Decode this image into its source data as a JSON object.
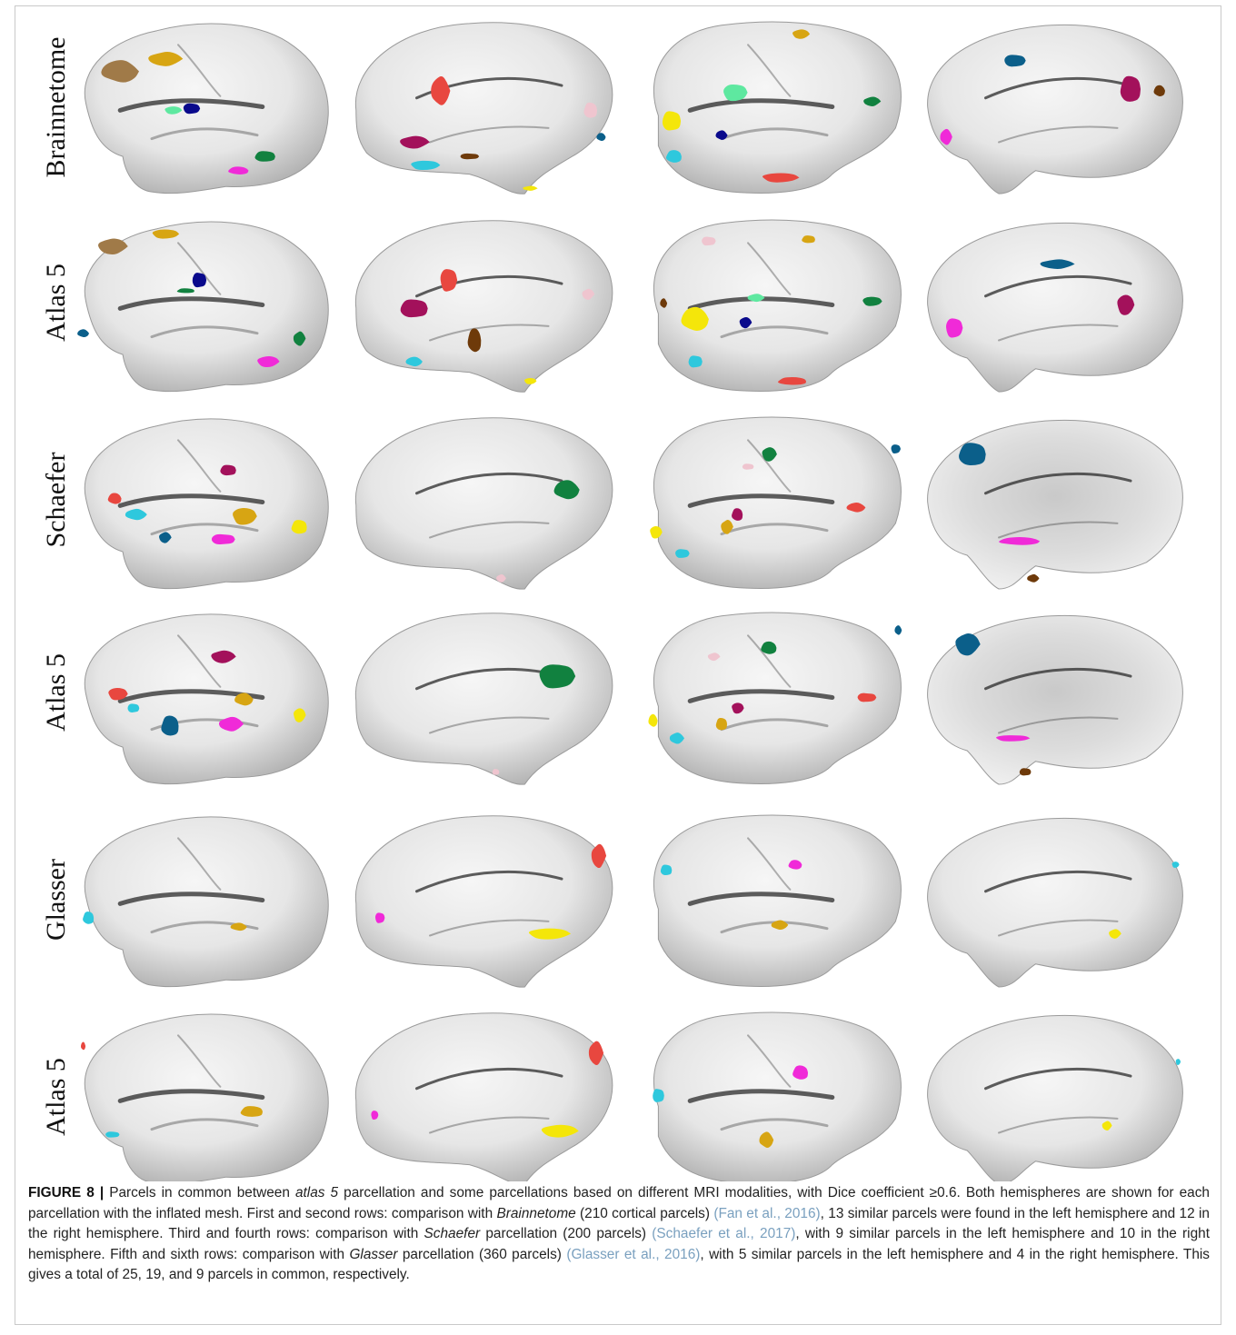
{
  "figure": {
    "row_labels": [
      "Brainnetome",
      "Atlas 5",
      "Schaefer",
      "Atlas 5",
      "Glasser",
      "Atlas 5"
    ],
    "caption": {
      "label": "FIGURE 8 |",
      "seg1": " Parcels in common between ",
      "italic1": "atlas 5",
      "seg2": " parcellation and some parcellations based on different MRI modalities, with Dice coefficient ≥0.6. Both hemispheres are shown for each parcellation with the inflated mesh. First and second rows: comparison with ",
      "italic2": "Brainnetome",
      "seg3": " (210 cortical parcels) ",
      "cite1": "(Fan et al., 2016)",
      "seg4": ", 13 similar parcels were found in the left hemisphere and 12 in the right hemisphere. Third and fourth rows: comparison with ",
      "italic3": "Schaefer",
      "seg5": " parcellation (200 parcels) ",
      "cite2": "(Schaefer et al., 2017)",
      "seg6": ", with 9 similar parcels in the left hemisphere and 10 in the right hemisphere. Fifth and sixth rows: comparison with ",
      "italic4": "Glasser",
      "seg7": " parcellation (360 parcels) ",
      "cite3": "(Glasser et al., 2016)",
      "seg8": ", with 5 similar parcels in the left hemisphere and 4 in the right hemisphere. This gives a total of 25, 19, and 9 parcels in common, respectively."
    },
    "colors": {
      "mesh_light": "#f4f4f4",
      "mesh_dark": "#b9b9b9",
      "sulcus": "#2a2a2a",
      "red": "#e8473f",
      "maroon": "#a3115b",
      "yellow": "#f4e60a",
      "cyan": "#2ec8dd",
      "green": "#11813f",
      "mint": "#5ee8a0",
      "navy": "#0a0a8c",
      "steel_blue": "#0b5f8a",
      "tan": "#a07a48",
      "gold": "#d7a513",
      "brown": "#6e3a0a",
      "magenta": "#f02ad8",
      "pink": "#efc5cf"
    },
    "panels": [
      [
        {
          "view": "lateral-left",
          "parcels": [
            [
              "tan",
              0.18,
              0.3,
              0.16,
              0.14
            ],
            [
              "gold",
              0.35,
              0.23,
              0.14,
              0.09
            ],
            [
              "mint",
              0.38,
              0.52,
              0.07,
              0.05
            ],
            [
              "navy",
              0.45,
              0.51,
              0.07,
              0.07
            ],
            [
              "green",
              0.73,
              0.78,
              0.09,
              0.07
            ],
            [
              "magenta",
              0.63,
              0.86,
              0.09,
              0.05
            ]
          ]
        },
        {
          "view": "medial-left",
          "parcels": [
            [
              "red",
              0.34,
              0.41,
              0.08,
              0.18
            ],
            [
              "maroon",
              0.24,
              0.7,
              0.12,
              0.08
            ],
            [
              "cyan",
              0.28,
              0.83,
              0.12,
              0.06
            ],
            [
              "brown",
              0.45,
              0.78,
              0.08,
              0.04
            ],
            [
              "pink",
              0.91,
              0.52,
              0.06,
              0.1
            ],
            [
              "steel_blue",
              0.95,
              0.67,
              0.04,
              0.05
            ],
            [
              "yellow",
              0.68,
              0.96,
              0.06,
              0.03
            ]
          ]
        },
        {
          "view": "lateral-right",
          "parcels": [
            [
              "gold",
              0.6,
              0.09,
              0.07,
              0.06
            ],
            [
              "mint",
              0.35,
              0.42,
              0.1,
              0.11
            ],
            [
              "yellow",
              0.11,
              0.58,
              0.08,
              0.13
            ],
            [
              "cyan",
              0.12,
              0.78,
              0.07,
              0.08
            ],
            [
              "navy",
              0.3,
              0.66,
              0.05,
              0.06
            ],
            [
              "green",
              0.87,
              0.47,
              0.07,
              0.06
            ],
            [
              "red",
              0.52,
              0.9,
              0.15,
              0.06
            ]
          ]
        },
        {
          "view": "medial-right",
          "parcels": [
            [
              "steel_blue",
              0.36,
              0.24,
              0.09,
              0.08
            ],
            [
              "maroon",
              0.8,
              0.4,
              0.09,
              0.17
            ],
            [
              "brown",
              0.91,
              0.41,
              0.05,
              0.07
            ],
            [
              "magenta",
              0.1,
              0.67,
              0.05,
              0.1
            ]
          ]
        }
      ],
      [
        {
          "view": "lateral-left",
          "parcels": [
            [
              "tan",
              0.15,
              0.17,
              0.12,
              0.1
            ],
            [
              "gold",
              0.35,
              0.1,
              0.11,
              0.06
            ],
            [
              "navy",
              0.48,
              0.36,
              0.06,
              0.1
            ],
            [
              "green",
              0.43,
              0.42,
              0.08,
              0.03
            ],
            [
              "steel_blue",
              0.04,
              0.66,
              0.05,
              0.05
            ],
            [
              "green",
              0.86,
              0.69,
              0.05,
              0.09
            ],
            [
              "magenta",
              0.74,
              0.82,
              0.09,
              0.07
            ]
          ]
        },
        {
          "view": "medial-left",
          "parcels": [
            [
              "red",
              0.37,
              0.36,
              0.07,
              0.15
            ],
            [
              "maroon",
              0.24,
              0.52,
              0.12,
              0.12
            ],
            [
              "brown",
              0.47,
              0.7,
              0.06,
              0.15
            ],
            [
              "cyan",
              0.24,
              0.82,
              0.07,
              0.06
            ],
            [
              "pink",
              0.9,
              0.44,
              0.05,
              0.07
            ],
            [
              "yellow",
              0.68,
              0.93,
              0.05,
              0.04
            ]
          ]
        },
        {
          "view": "lateral-right",
          "parcels": [
            [
              "pink",
              0.25,
              0.14,
              0.06,
              0.06
            ],
            [
              "gold",
              0.63,
              0.13,
              0.06,
              0.05
            ],
            [
              "yellow",
              0.2,
              0.58,
              0.12,
              0.15
            ],
            [
              "mint",
              0.43,
              0.46,
              0.07,
              0.05
            ],
            [
              "navy",
              0.39,
              0.6,
              0.05,
              0.07
            ],
            [
              "green",
              0.87,
              0.48,
              0.08,
              0.06
            ],
            [
              "cyan",
              0.2,
              0.82,
              0.06,
              0.08
            ],
            [
              "red",
              0.57,
              0.93,
              0.13,
              0.05
            ],
            [
              "brown",
              0.08,
              0.49,
              0.03,
              0.06
            ]
          ]
        },
        {
          "view": "medial-right",
          "parcels": [
            [
              "steel_blue",
              0.52,
              0.27,
              0.14,
              0.06
            ],
            [
              "maroon",
              0.78,
              0.5,
              0.07,
              0.13
            ],
            [
              "magenta",
              0.13,
              0.63,
              0.07,
              0.13
            ]
          ]
        }
      ],
      [
        {
          "view": "lateral-left",
          "parcels": [
            [
              "maroon",
              0.59,
              0.32,
              0.07,
              0.07
            ],
            [
              "red",
              0.16,
              0.48,
              0.06,
              0.07
            ],
            [
              "cyan",
              0.24,
              0.57,
              0.09,
              0.07
            ],
            [
              "steel_blue",
              0.35,
              0.7,
              0.05,
              0.07
            ],
            [
              "gold",
              0.65,
              0.58,
              0.1,
              0.11
            ],
            [
              "magenta",
              0.57,
              0.71,
              0.1,
              0.07
            ],
            [
              "yellow",
              0.86,
              0.64,
              0.07,
              0.09
            ]
          ]
        },
        {
          "view": "medial-left",
          "parcels": [
            [
              "green",
              0.82,
              0.43,
              0.11,
              0.12
            ],
            [
              "pink",
              0.57,
              0.93,
              0.04,
              0.05
            ]
          ]
        },
        {
          "view": "lateral-right",
          "parcels": [
            [
              "green",
              0.48,
              0.23,
              0.06,
              0.09
            ],
            [
              "steel_blue",
              0.96,
              0.2,
              0.04,
              0.06
            ],
            [
              "pink",
              0.4,
              0.3,
              0.05,
              0.04
            ],
            [
              "maroon",
              0.36,
              0.57,
              0.05,
              0.08
            ],
            [
              "red",
              0.81,
              0.53,
              0.08,
              0.06
            ],
            [
              "gold",
              0.32,
              0.64,
              0.05,
              0.09
            ],
            [
              "yellow",
              0.05,
              0.67,
              0.05,
              0.08
            ],
            [
              "cyan",
              0.15,
              0.79,
              0.06,
              0.06
            ]
          ]
        },
        {
          "view": "medial-right",
          "parcels": [
            [
              "steel_blue",
              0.2,
              0.23,
              0.12,
              0.15
            ],
            [
              "magenta",
              0.38,
              0.72,
              0.18,
              0.05
            ],
            [
              "brown",
              0.43,
              0.93,
              0.05,
              0.05
            ]
          ]
        }
      ],
      [
        {
          "view": "lateral-left",
          "parcels": [
            [
              "maroon",
              0.57,
              0.27,
              0.1,
              0.08
            ],
            [
              "red",
              0.17,
              0.48,
              0.08,
              0.08
            ],
            [
              "cyan",
              0.23,
              0.56,
              0.05,
              0.06
            ],
            [
              "steel_blue",
              0.37,
              0.66,
              0.08,
              0.13
            ],
            [
              "gold",
              0.65,
              0.51,
              0.08,
              0.08
            ],
            [
              "magenta",
              0.6,
              0.65,
              0.1,
              0.09
            ],
            [
              "yellow",
              0.86,
              0.6,
              0.05,
              0.09
            ]
          ]
        },
        {
          "view": "medial-left",
          "parcels": [
            [
              "green",
              0.78,
              0.38,
              0.15,
              0.16
            ],
            [
              "pink",
              0.55,
              0.92,
              0.03,
              0.04
            ]
          ]
        },
        {
          "view": "lateral-right",
          "parcels": [
            [
              "green",
              0.48,
              0.22,
              0.07,
              0.08
            ],
            [
              "steel_blue",
              0.97,
              0.12,
              0.03,
              0.06
            ],
            [
              "pink",
              0.27,
              0.27,
              0.05,
              0.05
            ],
            [
              "maroon",
              0.36,
              0.56,
              0.05,
              0.07
            ],
            [
              "red",
              0.85,
              0.5,
              0.08,
              0.06
            ],
            [
              "gold",
              0.3,
              0.65,
              0.05,
              0.08
            ],
            [
              "yellow",
              0.04,
              0.63,
              0.04,
              0.08
            ],
            [
              "cyan",
              0.13,
              0.73,
              0.06,
              0.07
            ]
          ]
        },
        {
          "view": "medial-right",
          "parcels": [
            [
              "steel_blue",
              0.18,
              0.2,
              0.1,
              0.14
            ],
            [
              "magenta",
              0.35,
              0.73,
              0.14,
              0.04
            ],
            [
              "brown",
              0.4,
              0.92,
              0.05,
              0.05
            ]
          ]
        }
      ],
      [
        {
          "view": "lateral-left",
          "parcels": [
            [
              "cyan",
              0.06,
              0.6,
              0.05,
              0.08
            ],
            [
              "gold",
              0.63,
              0.65,
              0.07,
              0.05
            ]
          ]
        },
        {
          "view": "medial-left",
          "parcels": [
            [
              "red",
              0.94,
              0.25,
              0.06,
              0.15
            ],
            [
              "yellow",
              0.75,
              0.69,
              0.17,
              0.07
            ],
            [
              "magenta",
              0.11,
              0.6,
              0.04,
              0.07
            ]
          ]
        },
        {
          "view": "lateral-right",
          "parcels": [
            [
              "cyan",
              0.09,
              0.33,
              0.05,
              0.07
            ],
            [
              "magenta",
              0.58,
              0.3,
              0.06,
              0.06
            ],
            [
              "gold",
              0.52,
              0.64,
              0.07,
              0.06
            ]
          ]
        },
        {
          "view": "medial-right",
          "parcels": [
            [
              "yellow",
              0.74,
              0.69,
              0.05,
              0.06
            ],
            [
              "cyan",
              0.97,
              0.3,
              0.03,
              0.04
            ]
          ]
        }
      ],
      [
        {
          "view": "lateral-left",
          "parcels": [
            [
              "cyan",
              0.15,
              0.71,
              0.06,
              0.04
            ],
            [
              "gold",
              0.68,
              0.58,
              0.1,
              0.07
            ],
            [
              "red",
              0.04,
              0.21,
              0.02,
              0.05
            ]
          ]
        },
        {
          "view": "medial-left",
          "parcels": [
            [
              "red",
              0.93,
              0.25,
              0.06,
              0.15
            ],
            [
              "yellow",
              0.79,
              0.69,
              0.15,
              0.08
            ],
            [
              "magenta",
              0.09,
              0.6,
              0.03,
              0.06
            ]
          ]
        },
        {
          "view": "lateral-right",
          "parcels": [
            [
              "cyan",
              0.06,
              0.49,
              0.05,
              0.09
            ],
            [
              "magenta",
              0.6,
              0.36,
              0.07,
              0.09
            ],
            [
              "gold",
              0.47,
              0.74,
              0.06,
              0.1
            ]
          ]
        },
        {
          "view": "medial-right",
          "parcels": [
            [
              "yellow",
              0.71,
              0.66,
              0.04,
              0.06
            ],
            [
              "cyan",
              0.98,
              0.3,
              0.02,
              0.04
            ]
          ]
        }
      ]
    ]
  }
}
